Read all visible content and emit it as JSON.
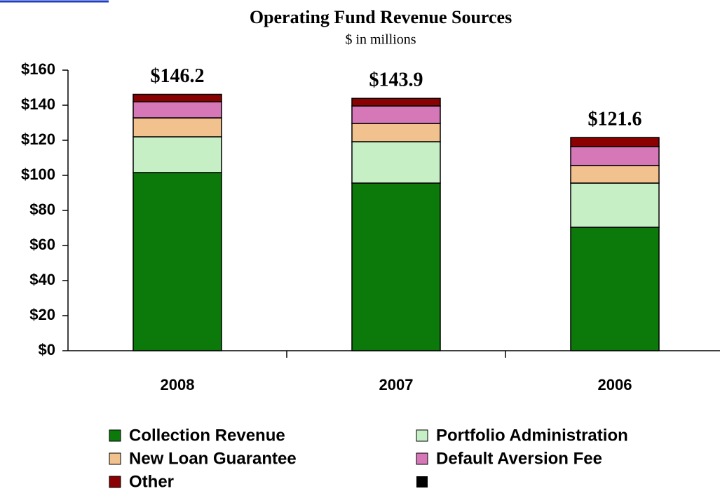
{
  "chart_data": {
    "type": "stacked-bar",
    "title": "Operating Fund Revenue Sources",
    "subtitle": "$ in millions",
    "categories": [
      "2008",
      "2007",
      "2006"
    ],
    "series": [
      {
        "name": "Collection Revenue",
        "color": "#0b7a0b",
        "values": [
          101.6,
          95.6,
          70.4
        ]
      },
      {
        "name": "Portfolio Administration",
        "color": "#c6efc6",
        "values": [
          20.4,
          23.6,
          25.2
        ]
      },
      {
        "name": "New Loan Guarantee",
        "color": "#f2c28e",
        "values": [
          10.8,
          10.4,
          10.0
        ]
      },
      {
        "name": "Default Aversion Fee",
        "color": "#d677b8",
        "values": [
          9.2,
          10.0,
          10.8
        ]
      },
      {
        "name": "Other",
        "color": "#8b0000",
        "values": [
          4.2,
          4.3,
          5.2
        ]
      }
    ],
    "totals": {
      "values": [
        146.2,
        143.9,
        121.6
      ],
      "value_labels": [
        "$146.2",
        "$143.9",
        "$121.6"
      ]
    },
    "ylim": [
      0,
      160
    ],
    "yticks": [
      {
        "value": 0,
        "label": "$0"
      },
      {
        "value": 20,
        "label": "$20"
      },
      {
        "value": 40,
        "label": "$40"
      },
      {
        "value": 60,
        "label": "$60"
      },
      {
        "value": 80,
        "label": "$80"
      },
      {
        "value": 100,
        "label": "$100"
      },
      {
        "value": 120,
        "label": "$120"
      },
      {
        "value": 140,
        "label": "$140"
      },
      {
        "value": 160,
        "label": "$160"
      }
    ],
    "grid": false
  }
}
